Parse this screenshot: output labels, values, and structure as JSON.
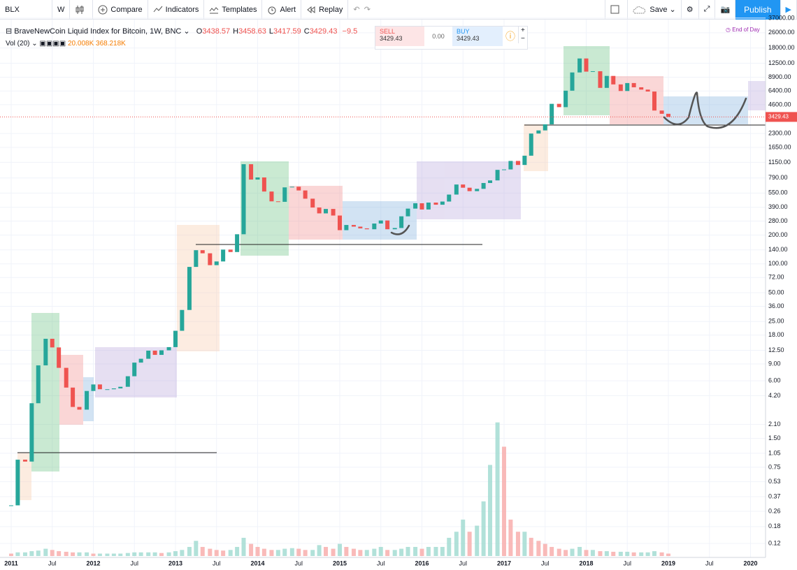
{
  "toolbar": {
    "symbol": "BLX",
    "interval": "W",
    "items": [
      "Compare",
      "Indicators",
      "Templates",
      "Alert",
      "Replay"
    ],
    "save": "Save",
    "publish": "Publish"
  },
  "legend": {
    "title": "BraveNewCoin Liquid Index for Bitcoin, 1W, BNC",
    "ohlc": [
      {
        "key": "O",
        "value": 3438.57
      },
      {
        "key": "H",
        "value": 3458.63
      },
      {
        "key": "L",
        "value": 3417.59
      },
      {
        "key": "C",
        "value": 3429.43
      }
    ],
    "change": "−9.5",
    "volume_title": "Vol (20)",
    "volume_values": [
      "20.008K",
      "368.218K"
    ]
  },
  "trade": {
    "sell_label": "SELL",
    "sell_price": 3429.43,
    "spread": "0.00",
    "buy_label": "BUY",
    "buy_price": 3429.43
  },
  "end_of_day": "End of Day",
  "chart_data": {
    "type": "candlestick",
    "yscale": "log",
    "grid": true,
    "xlim": [
      2010.864,
      2020.183
    ],
    "ylim": [
      0.0857,
      35700
    ],
    "xticks": [
      2011,
      {
        "value": 2011.5,
        "label": "Jul"
      },
      2012,
      {
        "value": 2012.5,
        "label": "Jul"
      },
      2013,
      {
        "value": 2013.5,
        "label": "Jul"
      },
      2014,
      {
        "value": 2014.5,
        "label": "Jul"
      },
      2015,
      {
        "value": 2015.5,
        "label": "Jul"
      },
      2016,
      {
        "value": 2016.5,
        "label": "Jul"
      },
      2017,
      {
        "value": 2017.5,
        "label": "Jul"
      },
      2018,
      {
        "value": 2018.5,
        "label": "Jul"
      },
      2019,
      {
        "value": 2019.5,
        "label": "Jul"
      },
      2020
    ],
    "yticks": [
      {
        "value": 37000,
        "label": "37000.00"
      },
      {
        "value": 26000,
        "label": "26000.00"
      },
      {
        "value": 18000,
        "label": "18000.00"
      },
      {
        "value": 12500,
        "label": "12500.00"
      },
      {
        "value": 8900,
        "label": "8900.00"
      },
      {
        "value": 6400,
        "label": "6400.00"
      },
      {
        "value": 4600,
        "label": "4600.00"
      },
      {
        "value": 2300,
        "label": "2300.00"
      },
      {
        "value": 1650,
        "label": "1650.00"
      },
      {
        "value": 1150,
        "label": "1150.00"
      },
      {
        "value": 790,
        "label": "790.00"
      },
      {
        "value": 550,
        "label": "550.00"
      },
      {
        "value": 390,
        "label": "390.00"
      },
      {
        "value": 280,
        "label": "280.00"
      },
      {
        "value": 200,
        "label": "200.00"
      },
      {
        "value": 140,
        "label": "140.00"
      },
      {
        "value": 100,
        "label": "100.00"
      },
      {
        "value": 72,
        "label": "72.00"
      },
      {
        "value": 50,
        "label": "50.00"
      },
      {
        "value": 36,
        "label": "36.00"
      },
      {
        "value": 25,
        "label": "25.00"
      },
      {
        "value": 18,
        "label": "18.00"
      },
      {
        "value": 12.5,
        "label": "12.50"
      },
      {
        "value": 9,
        "label": "9.00"
      },
      {
        "value": 6,
        "label": "6.00"
      },
      {
        "value": 4.2,
        "label": "4.20"
      },
      {
        "value": 2.1,
        "label": "2.10"
      },
      {
        "value": 1.5,
        "label": "1.50"
      },
      {
        "value": 1.05,
        "label": "1.05"
      },
      {
        "value": 0.75,
        "label": "0.75"
      },
      {
        "value": 0.53,
        "label": "0.53"
      },
      {
        "value": 0.37,
        "label": "0.37"
      },
      {
        "value": 0.26,
        "label": "0.26"
      },
      {
        "value": 0.18,
        "label": "0.18"
      },
      {
        "value": 0.12,
        "label": "0.12"
      }
    ],
    "x": [
      2011,
      2011.08,
      2011.17,
      2011.25,
      2011.33,
      2011.42,
      2011.5,
      2011.58,
      2011.67,
      2011.75,
      2011.83,
      2011.92,
      2012,
      2012.08,
      2012.17,
      2012.25,
      2012.33,
      2012.42,
      2012.5,
      2012.58,
      2012.67,
      2012.75,
      2012.83,
      2012.92,
      2013,
      2013.08,
      2013.17,
      2013.25,
      2013.33,
      2013.42,
      2013.5,
      2013.58,
      2013.67,
      2013.75,
      2013.83,
      2013.92,
      2014,
      2014.08,
      2014.17,
      2014.25,
      2014.33,
      2014.42,
      2014.5,
      2014.58,
      2014.67,
      2014.75,
      2014.83,
      2014.92,
      2015,
      2015.08,
      2015.17,
      2015.25,
      2015.33,
      2015.42,
      2015.5,
      2015.58,
      2015.67,
      2015.75,
      2015.83,
      2015.92,
      2016,
      2016.08,
      2016.17,
      2016.25,
      2016.33,
      2016.42,
      2016.5,
      2016.58,
      2016.67,
      2016.75,
      2016.83,
      2016.92,
      2017,
      2017.08,
      2017.17,
      2017.25,
      2017.33,
      2017.42,
      2017.5,
      2017.58,
      2017.67,
      2017.75,
      2017.83,
      2017.92,
      2018,
      2018.08,
      2018.17,
      2018.25,
      2018.33,
      2018.42,
      2018.5,
      2018.58,
      2018.67,
      2018.75,
      2018.83,
      2018.92,
      2019
    ],
    "series": [
      {
        "name": "BLX",
        "color_up": "#26a69a",
        "color_down": "#ef5350",
        "values": [
          0.3,
          0.9,
          0.86,
          3.5,
          8.7,
          16.5,
          13.4,
          8.2,
          5.1,
          3.2,
          3,
          4.7,
          5.5,
          4.9,
          4.9,
          5,
          5.2,
          6.7,
          9.3,
          10.2,
          12.4,
          11.2,
          12.5,
          13.5,
          20,
          33,
          93,
          139,
          129,
          97,
          106,
          141,
          133,
          204,
          1100,
          760,
          800,
          570,
          450,
          445,
          630,
          640,
          585,
          480,
          388,
          337,
          375,
          320,
          225,
          255,
          245,
          235,
          230,
          264,
          284,
          230,
          237,
          314,
          378,
          430,
          370,
          437,
          415,
          448,
          530,
          675,
          625,
          575,
          608,
          700,
          745,
          960,
          970,
          1190,
          1080,
          1350,
          2300,
          2480,
          2870,
          4700,
          4340,
          6450,
          10000,
          14000,
          10200,
          10300,
          6900,
          9200,
          7500,
          6400,
          7750,
          7000,
          6620,
          6320,
          4000,
          3700,
          3429.43
        ]
      },
      {
        "name": "Vol",
        "color": "#f7a9a7",
        "axis": "y2",
        "values": [
          40,
          60,
          60,
          80,
          90,
          120,
          100,
          80,
          70,
          60,
          60,
          60,
          40,
          40,
          40,
          40,
          40,
          50,
          60,
          60,
          60,
          60,
          50,
          60,
          80,
          100,
          150,
          250,
          150,
          120,
          100,
          90,
          100,
          150,
          300,
          200,
          150,
          120,
          100,
          100,
          120,
          130,
          120,
          100,
          100,
          180,
          150,
          120,
          200,
          150,
          120,
          100,
          100,
          120,
          150,
          100,
          100,
          120,
          150,
          150,
          120,
          150,
          150,
          150,
          300,
          400,
          600,
          400,
          500,
          900,
          1500,
          2200,
          1800,
          600,
          400,
          400,
          300,
          250,
          200,
          150,
          120,
          100,
          120,
          150,
          100,
          100,
          80,
          80,
          70,
          70,
          70,
          60,
          60,
          60,
          80,
          60,
          40
        ]
      }
    ],
    "y2lim": [
      0,
      2300
    ],
    "last_price": {
      "value": 3429.43,
      "label": "3429.43"
    }
  }
}
